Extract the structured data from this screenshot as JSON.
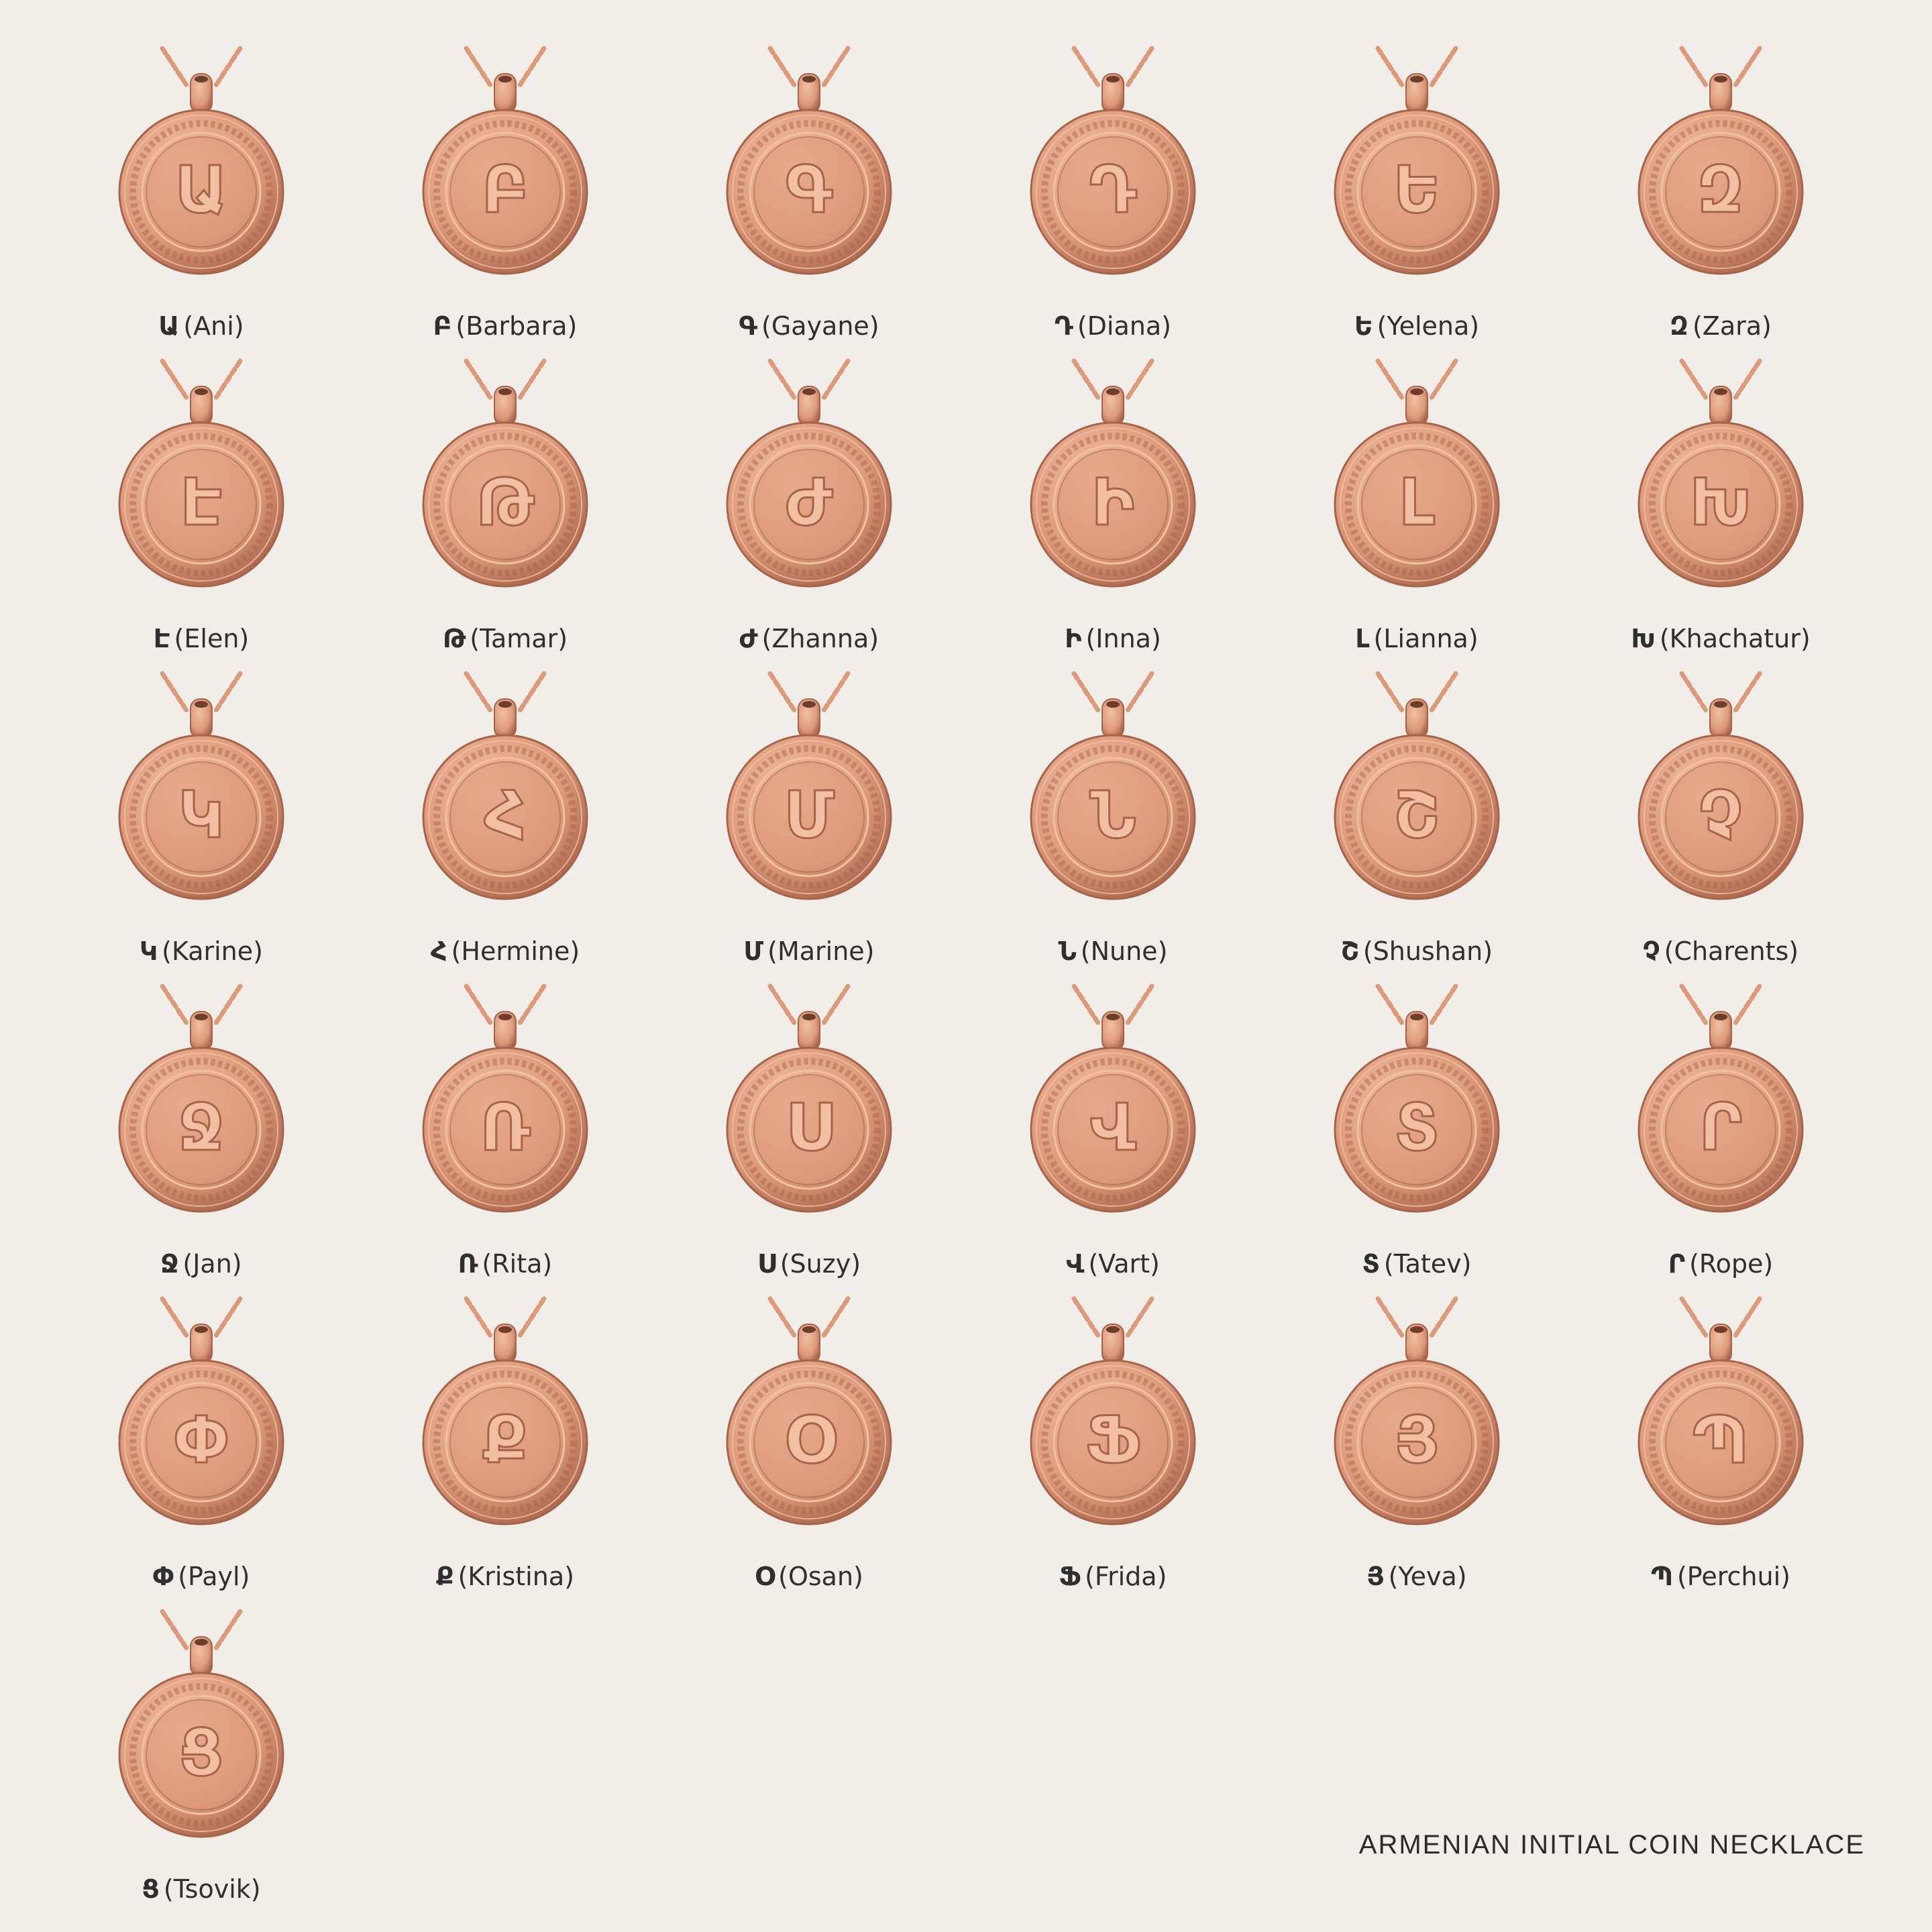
{
  "colors": {
    "background": "#f1eeea",
    "gold_light": "#f2bfa2",
    "gold_mid": "#dd9a7b",
    "gold_dark": "#a7644a",
    "text": "#2f2f2f"
  },
  "pendants": [
    {
      "letter": "Ա",
      "name": "(Ani)"
    },
    {
      "letter": "Բ",
      "name": "(Barbara)"
    },
    {
      "letter": "Գ",
      "name": "(Gayane)"
    },
    {
      "letter": "Դ",
      "name": "(Diana)"
    },
    {
      "letter": "Ե",
      "name": "(Yelena)"
    },
    {
      "letter": "Զ",
      "name": "(Zara)"
    },
    {
      "letter": "Է",
      "name": "(Elen)"
    },
    {
      "letter": "Թ",
      "name": "(Tamar)"
    },
    {
      "letter": "Ժ",
      "name": "(Zhanna)"
    },
    {
      "letter": "Ի",
      "name": "(Inna)"
    },
    {
      "letter": "Լ",
      "name": "(Lianna)"
    },
    {
      "letter": "Խ",
      "name": "(Khachatur)"
    },
    {
      "letter": "Կ",
      "name": "(Karine)"
    },
    {
      "letter": "Հ",
      "name": "(Hermine)"
    },
    {
      "letter": "Մ",
      "name": "(Marine)"
    },
    {
      "letter": "Ն",
      "name": "(Nune)"
    },
    {
      "letter": "Շ",
      "name": "(Shushan)"
    },
    {
      "letter": "Չ",
      "name": "(Charents)"
    },
    {
      "letter": "Ջ",
      "name": "(Jan)"
    },
    {
      "letter": "Ռ",
      "name": "(Rita)"
    },
    {
      "letter": "Ս",
      "name": "(Suzy)"
    },
    {
      "letter": "Վ",
      "name": "(Vart)"
    },
    {
      "letter": "Տ",
      "name": "(Tatev)"
    },
    {
      "letter": "Ր",
      "name": "(Rope)"
    },
    {
      "letter": "Փ",
      "name": "(Payl)"
    },
    {
      "letter": "Ք",
      "name": "(Kristina)"
    },
    {
      "letter": "Օ",
      "name": "(Osan)"
    },
    {
      "letter": "Ֆ",
      "name": "(Frida)"
    },
    {
      "letter": "Յ",
      "name": "(Yeva)"
    },
    {
      "letter": "Պ",
      "name": "(Perchui)"
    },
    {
      "letter": "Ց",
      "name": "(Tsovik)"
    }
  ],
  "footer": {
    "title": "ARMENIAN INITIAL COIN NECKLACE"
  }
}
